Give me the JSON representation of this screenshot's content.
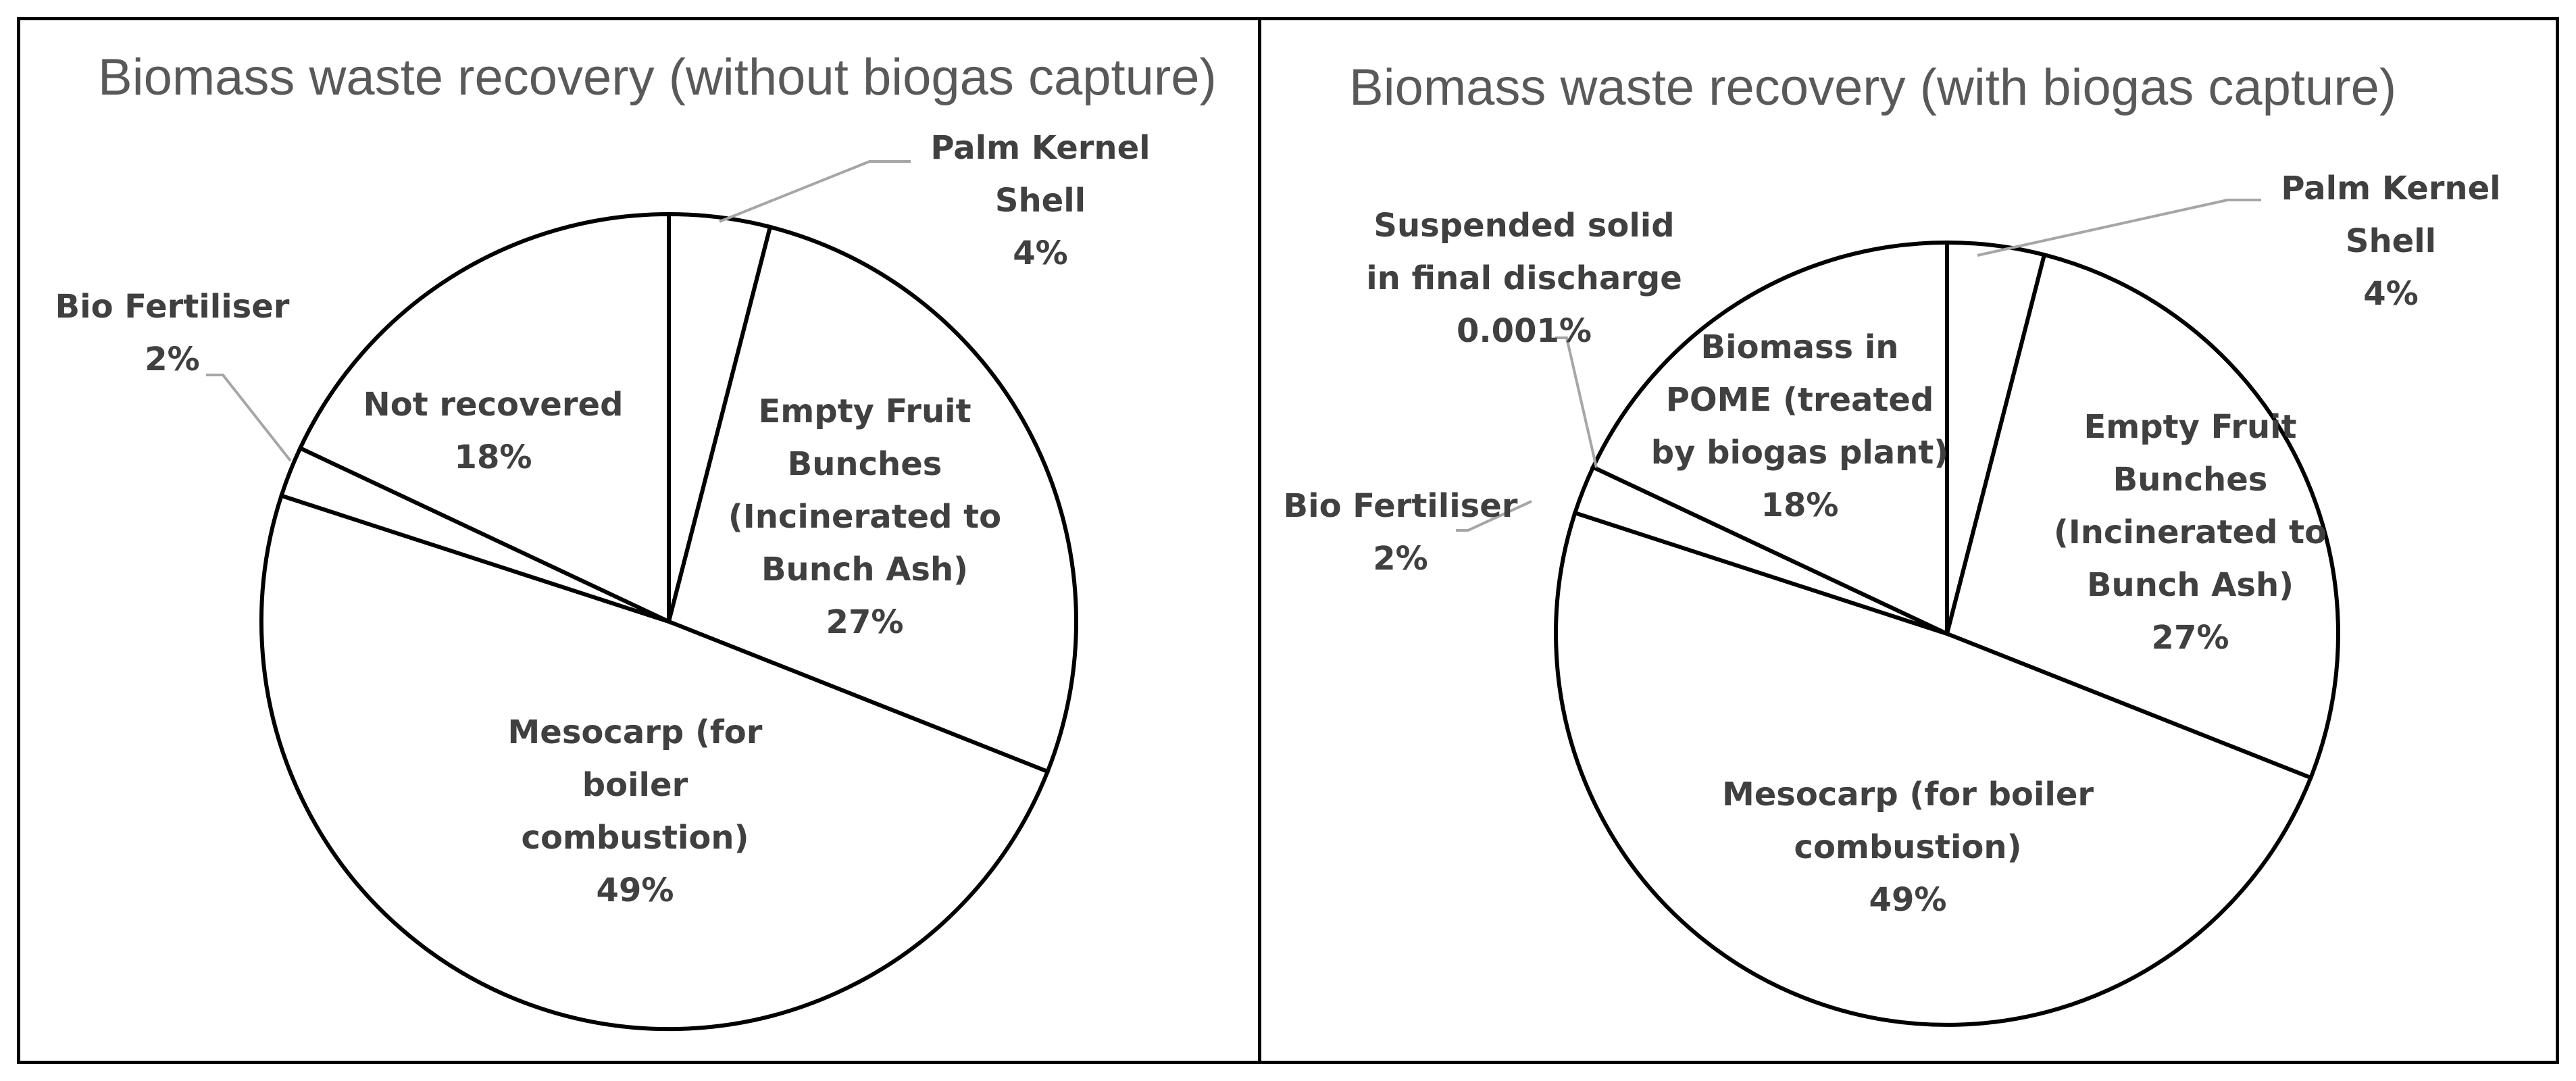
{
  "chart_data": [
    {
      "type": "pie",
      "title": "Biomass waste recovery (without biogas capture)",
      "slices": [
        {
          "label": [
            "Palm Kernel",
            "Shell"
          ],
          "value": 4,
          "pct": "4%"
        },
        {
          "label": [
            "Empty Fruit",
            "Bunches",
            "(Incinerated to",
            "Bunch Ash)"
          ],
          "value": 27,
          "pct": "27%"
        },
        {
          "label": [
            "Mesocarp (for",
            "boiler",
            "combustion)"
          ],
          "value": 49,
          "pct": "49%"
        },
        {
          "label": [
            "Bio Fertiliser"
          ],
          "value": 2,
          "pct": "2%"
        },
        {
          "label": [
            "Not recovered"
          ],
          "value": 18,
          "pct": "18%"
        }
      ]
    },
    {
      "type": "pie",
      "title": "Biomass waste recovery (with biogas capture)",
      "slices": [
        {
          "label": [
            "Palm Kernel",
            "Shell"
          ],
          "value": 4,
          "pct": "4%"
        },
        {
          "label": [
            "Empty Fruit",
            "Bunches",
            "(Incinerated to",
            "Bunch Ash)"
          ],
          "value": 27,
          "pct": "27%"
        },
        {
          "label": [
            "Mesocarp (for boiler",
            "combustion)"
          ],
          "value": 49,
          "pct": "49%"
        },
        {
          "label": [
            "Bio Fertiliser"
          ],
          "value": 2,
          "pct": "2%"
        },
        {
          "label": [
            "Suspended solid",
            "in final discharge"
          ],
          "value": 0.001,
          "pct": "0.001%"
        },
        {
          "label": [
            "Biomass in",
            "POME (treated",
            "by biogas plant)"
          ],
          "value": 18,
          "pct": "18%"
        }
      ]
    }
  ]
}
